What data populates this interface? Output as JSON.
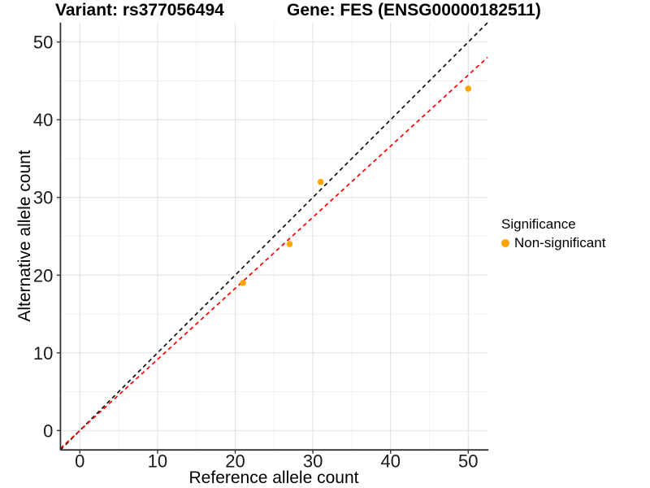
{
  "chart_data": {
    "type": "scatter",
    "title_left": "Variant: rs377056494",
    "title_right": "Gene: FES (ENSG00000182511)",
    "xlabel": "Reference allele count",
    "ylabel": "Alternative allele count",
    "xlim": [
      -2.5,
      52.5
    ],
    "ylim": [
      -2.5,
      52.5
    ],
    "ticks": [
      0,
      10,
      20,
      30,
      40,
      50
    ],
    "minor_ticks": [
      5,
      15,
      25,
      35,
      45
    ],
    "grid": true,
    "points": [
      {
        "x": 21,
        "y": 19
      },
      {
        "x": 27,
        "y": 24
      },
      {
        "x": 31,
        "y": 32
      },
      {
        "x": 50,
        "y": 44
      }
    ],
    "lines": [
      {
        "name": "identity",
        "color": "#111111",
        "style": "dashed",
        "x1": -2.5,
        "y1": -2.5,
        "x2": 52.5,
        "y2": 52.5
      },
      {
        "name": "fit",
        "color": "#ff0000",
        "style": "dashed",
        "slope": 0.915,
        "x1": -2.5,
        "y1": -2.29,
        "x2": 52.5,
        "y2": 48.04
      }
    ],
    "legend": {
      "title": "Significance",
      "position": "right",
      "items": [
        {
          "label": "Non-significant",
          "color": "#FFA500"
        }
      ]
    },
    "colors": {
      "point": "#FFA500",
      "grid_major": "#E4E4E4",
      "grid_minor": "#F1F1F1",
      "axis": "#333333",
      "tick_text": "#1a1a1a"
    }
  }
}
